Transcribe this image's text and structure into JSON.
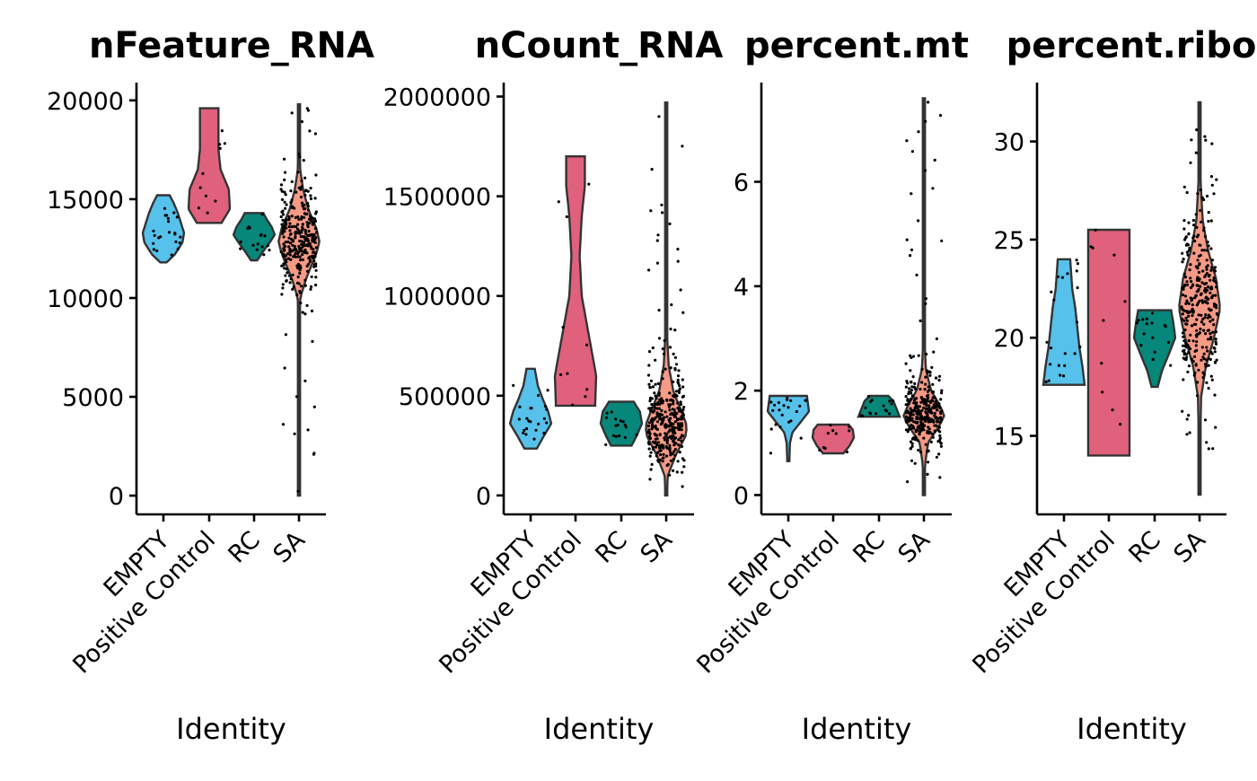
{
  "figure": {
    "group_colors": {
      "EMPTY": "#56C1EA",
      "Positive Control": "#E0617C",
      "RC": "#07867A",
      "SA": "#F79A85"
    },
    "outline_color": "#333333",
    "point_color": "#000000"
  },
  "chart_data": [
    {
      "type": "violin",
      "title": "nFeature_RNA",
      "xlabel": "Identity",
      "ylabel": "",
      "categories": [
        "EMPTY",
        "Positive Control",
        "RC",
        "SA"
      ],
      "yticks": [
        0,
        5000,
        10000,
        15000,
        20000
      ],
      "ytick_labels": [
        "0",
        "5000",
        "10000",
        "15000",
        "20000"
      ],
      "ylim": [
        -950,
        20900
      ],
      "violins": [
        {
          "category": "EMPTY",
          "min": 11800,
          "max": 15200,
          "n_points": 22,
          "profile": [
            [
              11800,
              0.15
            ],
            [
              12200,
              0.55
            ],
            [
              12800,
              0.92
            ],
            [
              13300,
              1.0
            ],
            [
              13800,
              0.85
            ],
            [
              14300,
              0.7
            ],
            [
              14800,
              0.5
            ],
            [
              15200,
              0.3
            ]
          ]
        },
        {
          "category": "Positive Control",
          "min": 13800,
          "max": 19600,
          "n_points": 10,
          "profile": [
            [
              13800,
              0.6
            ],
            [
              14500,
              1.0
            ],
            [
              15500,
              0.95
            ],
            [
              16500,
              0.55
            ],
            [
              17500,
              0.45
            ],
            [
              18500,
              0.45
            ],
            [
              19600,
              0.45
            ]
          ]
        },
        {
          "category": "RC",
          "min": 11900,
          "max": 14300,
          "n_points": 16,
          "profile": [
            [
              11900,
              0.15
            ],
            [
              12300,
              0.4
            ],
            [
              12800,
              0.75
            ],
            [
              13200,
              1.0
            ],
            [
              13600,
              0.85
            ],
            [
              14000,
              0.6
            ],
            [
              14300,
              0.45
            ]
          ]
        },
        {
          "category": "SA",
          "min": 0,
          "max": 19800,
          "n_points": 320,
          "profile": [
            [
              0,
              0.01
            ],
            [
              8000,
              0.02
            ],
            [
              10000,
              0.06
            ],
            [
              11000,
              0.35
            ],
            [
              12000,
              0.75
            ],
            [
              12800,
              1.0
            ],
            [
              13500,
              0.85
            ],
            [
              14500,
              0.45
            ],
            [
              15500,
              0.2
            ],
            [
              16500,
              0.06
            ],
            [
              18000,
              0.02
            ],
            [
              19800,
              0.01
            ]
          ]
        }
      ]
    },
    {
      "type": "violin",
      "title": "nCount_RNA",
      "xlabel": "Identity",
      "ylabel": "",
      "categories": [
        "EMPTY",
        "Positive Control",
        "RC",
        "SA"
      ],
      "yticks": [
        0,
        500000,
        1000000,
        1500000,
        2000000
      ],
      "ytick_labels": [
        "0",
        "500000",
        "1000000",
        "1500000",
        "2000000"
      ],
      "ylim": [
        -95000,
        2070000
      ],
      "violins": [
        {
          "category": "EMPTY",
          "min": 235000,
          "max": 635000,
          "n_points": 22,
          "profile": [
            [
              235000,
              0.3
            ],
            [
              300000,
              0.65
            ],
            [
              360000,
              1.0
            ],
            [
              420000,
              0.85
            ],
            [
              480000,
              0.6
            ],
            [
              550000,
              0.35
            ],
            [
              635000,
              0.2
            ]
          ]
        },
        {
          "category": "Positive Control",
          "min": 450000,
          "max": 1700000,
          "n_points": 10,
          "profile": [
            [
              450000,
              0.95
            ],
            [
              600000,
              1.0
            ],
            [
              800000,
              0.65
            ],
            [
              1000000,
              0.3
            ],
            [
              1200000,
              0.2
            ],
            [
              1400000,
              0.3
            ],
            [
              1550000,
              0.45
            ],
            [
              1700000,
              0.45
            ]
          ]
        },
        {
          "category": "RC",
          "min": 250000,
          "max": 470000,
          "n_points": 16,
          "profile": [
            [
              250000,
              0.5
            ],
            [
              300000,
              0.75
            ],
            [
              360000,
              1.0
            ],
            [
              420000,
              0.9
            ],
            [
              470000,
              0.6
            ]
          ]
        },
        {
          "category": "SA",
          "min": 0,
          "max": 1970000,
          "n_points": 320,
          "profile": [
            [
              0,
              0.02
            ],
            [
              100000,
              0.08
            ],
            [
              200000,
              0.45
            ],
            [
              300000,
              0.95
            ],
            [
              350000,
              1.0
            ],
            [
              420000,
              0.75
            ],
            [
              520000,
              0.35
            ],
            [
              650000,
              0.12
            ],
            [
              800000,
              0.04
            ],
            [
              1200000,
              0.015
            ],
            [
              1970000,
              0.01
            ]
          ]
        }
      ]
    },
    {
      "type": "violin",
      "title": "percent.mt",
      "xlabel": "Identity",
      "ylabel": "",
      "categories": [
        "EMPTY",
        "Positive Control",
        "RC",
        "SA"
      ],
      "yticks": [
        0,
        2,
        4,
        6
      ],
      "ytick_labels": [
        "0",
        "2",
        "4",
        "6"
      ],
      "ylim": [
        -0.37,
        7.9
      ],
      "violins": [
        {
          "category": "EMPTY",
          "min": 0.65,
          "max": 1.9,
          "n_points": 22,
          "profile": [
            [
              0.65,
              0.05
            ],
            [
              1.0,
              0.08
            ],
            [
              1.2,
              0.2
            ],
            [
              1.45,
              0.7
            ],
            [
              1.6,
              1.0
            ],
            [
              1.75,
              0.95
            ],
            [
              1.9,
              0.9
            ]
          ]
        },
        {
          "category": "Positive Control",
          "min": 0.8,
          "max": 1.35,
          "n_points": 10,
          "profile": [
            [
              0.8,
              0.5
            ],
            [
              0.95,
              0.8
            ],
            [
              1.1,
              1.0
            ],
            [
              1.25,
              0.95
            ],
            [
              1.35,
              0.75
            ]
          ]
        },
        {
          "category": "RC",
          "min": 1.5,
          "max": 1.9,
          "n_points": 16,
          "profile": [
            [
              1.5,
              1.0
            ],
            [
              1.6,
              0.9
            ],
            [
              1.7,
              0.8
            ],
            [
              1.8,
              0.7
            ],
            [
              1.9,
              0.45
            ]
          ]
        },
        {
          "category": "SA",
          "min": 0.0,
          "max": 7.6,
          "n_points": 320,
          "profile": [
            [
              0.0,
              0.01
            ],
            [
              0.5,
              0.03
            ],
            [
              1.0,
              0.2
            ],
            [
              1.3,
              0.7
            ],
            [
              1.5,
              1.0
            ],
            [
              1.7,
              0.8
            ],
            [
              2.0,
              0.35
            ],
            [
              2.4,
              0.1
            ],
            [
              3.0,
              0.02
            ],
            [
              7.6,
              0.01
            ]
          ]
        }
      ]
    },
    {
      "type": "violin",
      "title": "percent.ribo",
      "xlabel": "Identity",
      "ylabel": "",
      "categories": [
        "EMPTY",
        "Positive Control",
        "RC",
        "SA"
      ],
      "yticks": [
        15,
        20,
        25,
        30
      ],
      "ytick_labels": [
        "15",
        "20",
        "25",
        "30"
      ],
      "ylim": [
        11.0,
        33.0
      ],
      "violins": [
        {
          "category": "EMPTY",
          "min": 17.6,
          "max": 24.0,
          "n_points": 22,
          "profile": [
            [
              17.6,
              1.0
            ],
            [
              18.5,
              0.9
            ],
            [
              19.5,
              0.75
            ],
            [
              20.5,
              0.65
            ],
            [
              21.5,
              0.55
            ],
            [
              22.5,
              0.4
            ],
            [
              24.0,
              0.3
            ]
          ]
        },
        {
          "category": "Positive Control",
          "min": 14.0,
          "max": 25.5,
          "n_points": 10,
          "profile": [
            [
              14.0,
              1.0
            ],
            [
              16.0,
              1.0
            ],
            [
              18.0,
              1.0
            ],
            [
              20.0,
              1.0
            ],
            [
              22.0,
              1.0
            ],
            [
              24.0,
              1.0
            ],
            [
              25.5,
              1.0
            ]
          ]
        },
        {
          "category": "RC",
          "min": 17.5,
          "max": 21.4,
          "n_points": 16,
          "profile": [
            [
              17.5,
              0.15
            ],
            [
              18.3,
              0.35
            ],
            [
              19.2,
              0.7
            ],
            [
              20.0,
              1.0
            ],
            [
              20.8,
              0.9
            ],
            [
              21.4,
              0.8
            ]
          ]
        },
        {
          "category": "SA",
          "min": 12.0,
          "max": 32.0,
          "n_points": 320,
          "profile": [
            [
              12.0,
              0.01
            ],
            [
              15.0,
              0.03
            ],
            [
              17.0,
              0.08
            ],
            [
              18.5,
              0.3
            ],
            [
              20.0,
              0.7
            ],
            [
              21.5,
              1.0
            ],
            [
              23.0,
              0.8
            ],
            [
              24.5,
              0.4
            ],
            [
              26.0,
              0.15
            ],
            [
              28.0,
              0.05
            ],
            [
              32.0,
              0.01
            ]
          ]
        }
      ]
    }
  ]
}
